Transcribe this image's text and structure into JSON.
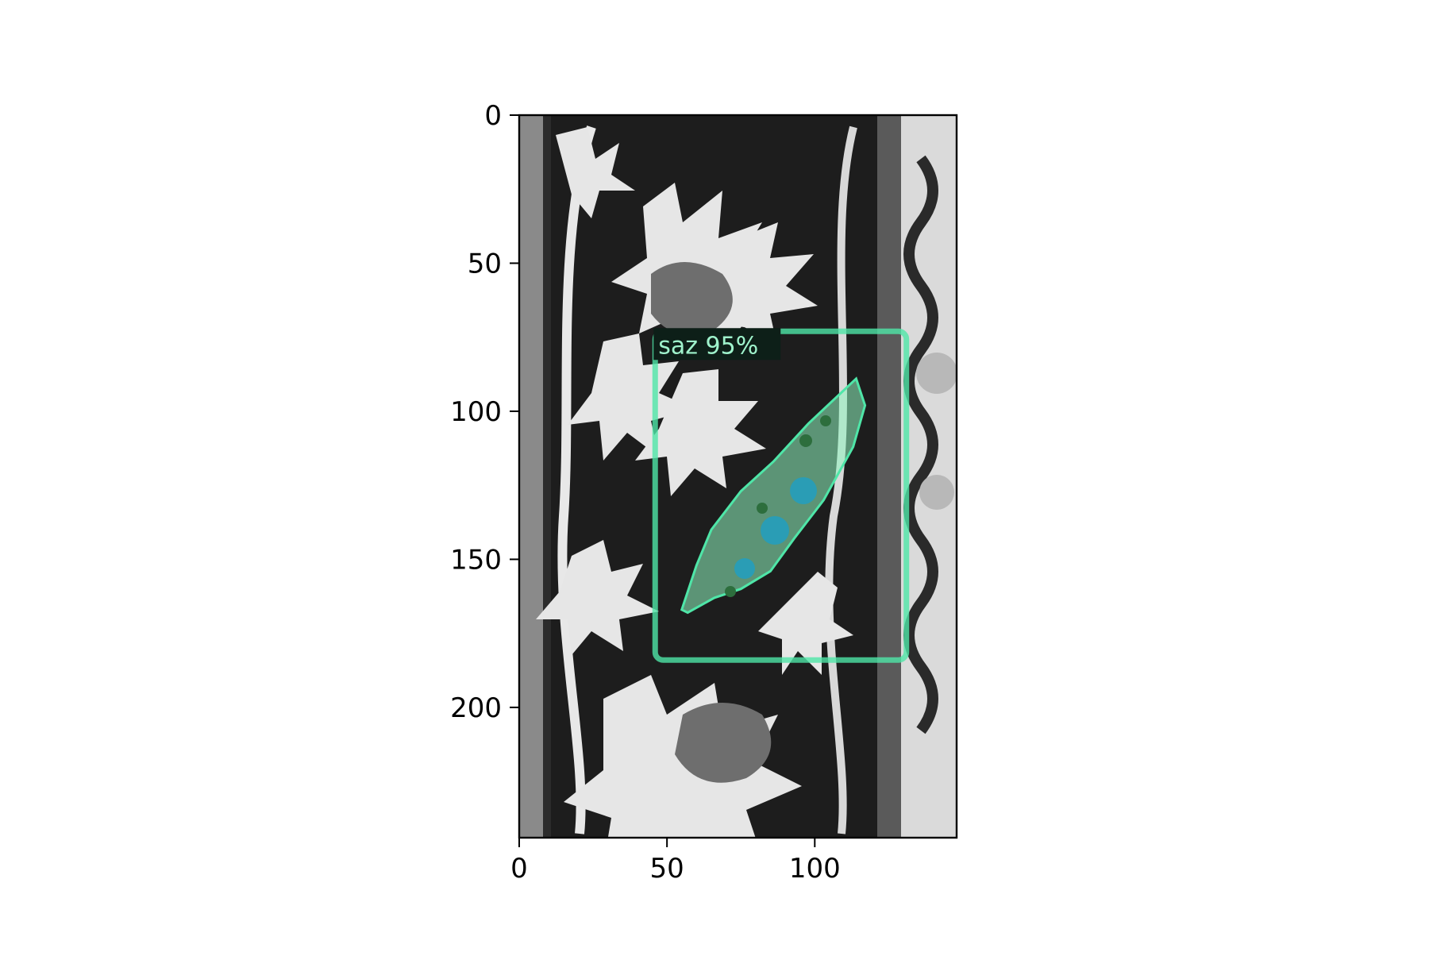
{
  "figure": {
    "image_description_label": "Grayscale ornamental tile panel with floral and saz-leaf motifs",
    "xlim": [
      0,
      148
    ],
    "ylim": [
      244,
      0
    ],
    "x_ticks": [
      {
        "value": 0,
        "label": "0"
      },
      {
        "value": 50,
        "label": "50"
      },
      {
        "value": 100,
        "label": "100"
      }
    ],
    "y_ticks": [
      {
        "value": 0,
        "label": "0"
      },
      {
        "value": 50,
        "label": "50"
      },
      {
        "value": 100,
        "label": "100"
      },
      {
        "value": 150,
        "label": "150"
      },
      {
        "value": 200,
        "label": "200"
      }
    ]
  },
  "detection": {
    "label_text": "saz 95%",
    "class": "saz",
    "score": 0.95,
    "box": {
      "x0": 46,
      "y0": 73,
      "x1": 131,
      "y1": 184
    },
    "color": "#4fe6a8",
    "mask_fill": "#8ff5c0",
    "label_bg": "#0d1f18",
    "label_color": "#9ff3cc"
  }
}
